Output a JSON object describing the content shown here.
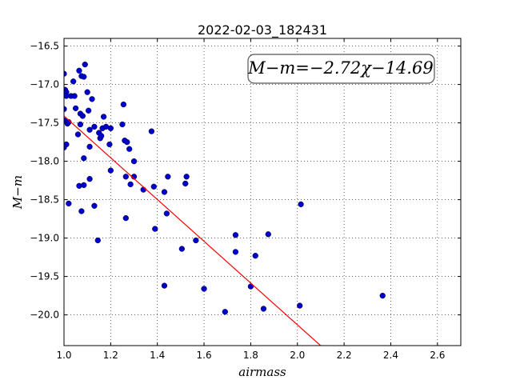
{
  "chart_data": {
    "type": "scatter",
    "title": "2022-02-03_182431",
    "xlabel": "airmass",
    "ylabel": "M−m",
    "xlim": [
      1.0,
      2.7
    ],
    "ylim": [
      -20.4,
      -16.4
    ],
    "y_inverted": true,
    "grid": true,
    "x_ticks": [
      "1.0",
      "1.2",
      "1.4",
      "1.6",
      "1.8",
      "2.0",
      "2.2",
      "2.4",
      "2.6"
    ],
    "y_ticks": [
      "−16.5",
      "−17.0",
      "−17.5",
      "−18.0",
      "−18.5",
      "−19.0",
      "−19.5",
      "−20.0"
    ],
    "annotation": "M−m=−2.72χ−14.69",
    "fit": {
      "slope": -2.72,
      "intercept": -14.69,
      "color": "#ff0000"
    },
    "marker_color": "#0000cc",
    "points": [
      [
        1.0,
        -16.86
      ],
      [
        1.005,
        -17.07
      ],
      [
        1.01,
        -17.1
      ],
      [
        1.01,
        -17.15
      ],
      [
        1.0,
        -17.32
      ],
      [
        1.005,
        -17.47
      ],
      [
        1.01,
        -17.78
      ],
      [
        1.0,
        -17.82
      ],
      [
        1.015,
        -17.51
      ],
      [
        1.02,
        -17.49
      ],
      [
        1.03,
        -17.15
      ],
      [
        1.04,
        -16.96
      ],
      [
        1.045,
        -17.15
      ],
      [
        1.05,
        -17.31
      ],
      [
        1.06,
        -17.65
      ],
      [
        1.065,
        -16.82
      ],
      [
        1.07,
        -17.38
      ],
      [
        1.07,
        -17.52
      ],
      [
        1.075,
        -16.89
      ],
      [
        1.08,
        -17.41
      ],
      [
        1.085,
        -16.9
      ],
      [
        1.09,
        -16.74
      ],
      [
        1.1,
        -17.1
      ],
      [
        1.105,
        -17.34
      ],
      [
        1.11,
        -17.59
      ],
      [
        1.12,
        -17.19
      ],
      [
        1.13,
        -17.55
      ],
      [
        1.15,
        -17.63
      ],
      [
        1.155,
        -17.7
      ],
      [
        1.16,
        -17.67
      ],
      [
        1.165,
        -17.57
      ],
      [
        1.17,
        -17.42
      ],
      [
        1.18,
        -17.55
      ],
      [
        1.195,
        -17.78
      ],
      [
        1.2,
        -17.57
      ],
      [
        1.25,
        -17.52
      ],
      [
        1.255,
        -17.26
      ],
      [
        1.26,
        -17.73
      ],
      [
        1.27,
        -17.75
      ],
      [
        1.28,
        -17.84
      ],
      [
        1.375,
        -17.61
      ],
      [
        1.11,
        -17.81
      ],
      [
        1.085,
        -17.96
      ],
      [
        1.2,
        -18.12
      ],
      [
        1.3,
        -18.0
      ],
      [
        1.265,
        -18.2
      ],
      [
        1.3,
        -18.2
      ],
      [
        1.285,
        -18.3
      ],
      [
        1.34,
        -18.37
      ],
      [
        1.385,
        -18.33
      ],
      [
        1.43,
        -18.4
      ],
      [
        1.445,
        -18.2
      ],
      [
        1.525,
        -18.2
      ],
      [
        1.52,
        -18.29
      ],
      [
        1.02,
        -18.55
      ],
      [
        1.065,
        -18.32
      ],
      [
        1.085,
        -18.31
      ],
      [
        1.11,
        -18.23
      ],
      [
        1.075,
        -18.65
      ],
      [
        1.13,
        -18.58
      ],
      [
        1.145,
        -19.03
      ],
      [
        1.265,
        -18.74
      ],
      [
        1.44,
        -18.68
      ],
      [
        1.39,
        -18.88
      ],
      [
        1.565,
        -19.03
      ],
      [
        1.505,
        -19.14
      ],
      [
        1.735,
        -18.96
      ],
      [
        1.735,
        -19.18
      ],
      [
        1.82,
        -19.23
      ],
      [
        1.875,
        -18.95
      ],
      [
        2.015,
        -18.56
      ],
      [
        1.43,
        -19.62
      ],
      [
        1.6,
        -19.66
      ],
      [
        1.8,
        -19.63
      ],
      [
        1.69,
        -19.96
      ],
      [
        1.855,
        -19.92
      ],
      [
        2.01,
        -19.88
      ],
      [
        2.365,
        -19.75
      ]
    ]
  }
}
